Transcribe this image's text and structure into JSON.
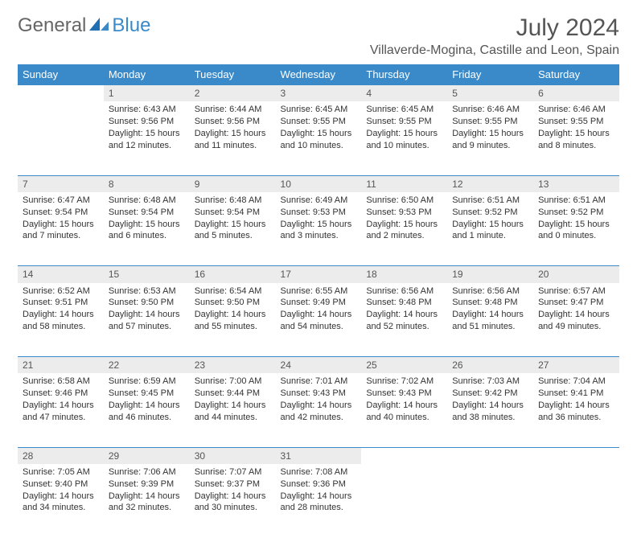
{
  "logo": {
    "general": "General",
    "blue": "Blue"
  },
  "title": "July 2024",
  "location": "Villaverde-Mogina, Castille and Leon, Spain",
  "colors": {
    "header_bg": "#3a8ac9",
    "header_text": "#ffffff",
    "daynum_bg": "#ececec",
    "border": "#3a8ac9",
    "text": "#333333",
    "title_text": "#555555"
  },
  "typography": {
    "title_fontsize": 30,
    "location_fontsize": 16,
    "dayhead_fontsize": 13,
    "cell_fontsize": 11
  },
  "day_headers": [
    "Sunday",
    "Monday",
    "Tuesday",
    "Wednesday",
    "Thursday",
    "Friday",
    "Saturday"
  ],
  "weeks": [
    {
      "nums": [
        "",
        "1",
        "2",
        "3",
        "4",
        "5",
        "6"
      ],
      "cells": [
        null,
        {
          "sunrise": "Sunrise: 6:43 AM",
          "sunset": "Sunset: 9:56 PM",
          "day1": "Daylight: 15 hours",
          "day2": "and 12 minutes."
        },
        {
          "sunrise": "Sunrise: 6:44 AM",
          "sunset": "Sunset: 9:56 PM",
          "day1": "Daylight: 15 hours",
          "day2": "and 11 minutes."
        },
        {
          "sunrise": "Sunrise: 6:45 AM",
          "sunset": "Sunset: 9:55 PM",
          "day1": "Daylight: 15 hours",
          "day2": "and 10 minutes."
        },
        {
          "sunrise": "Sunrise: 6:45 AM",
          "sunset": "Sunset: 9:55 PM",
          "day1": "Daylight: 15 hours",
          "day2": "and 10 minutes."
        },
        {
          "sunrise": "Sunrise: 6:46 AM",
          "sunset": "Sunset: 9:55 PM",
          "day1": "Daylight: 15 hours",
          "day2": "and 9 minutes."
        },
        {
          "sunrise": "Sunrise: 6:46 AM",
          "sunset": "Sunset: 9:55 PM",
          "day1": "Daylight: 15 hours",
          "day2": "and 8 minutes."
        }
      ]
    },
    {
      "nums": [
        "7",
        "8",
        "9",
        "10",
        "11",
        "12",
        "13"
      ],
      "cells": [
        {
          "sunrise": "Sunrise: 6:47 AM",
          "sunset": "Sunset: 9:54 PM",
          "day1": "Daylight: 15 hours",
          "day2": "and 7 minutes."
        },
        {
          "sunrise": "Sunrise: 6:48 AM",
          "sunset": "Sunset: 9:54 PM",
          "day1": "Daylight: 15 hours",
          "day2": "and 6 minutes."
        },
        {
          "sunrise": "Sunrise: 6:48 AM",
          "sunset": "Sunset: 9:54 PM",
          "day1": "Daylight: 15 hours",
          "day2": "and 5 minutes."
        },
        {
          "sunrise": "Sunrise: 6:49 AM",
          "sunset": "Sunset: 9:53 PM",
          "day1": "Daylight: 15 hours",
          "day2": "and 3 minutes."
        },
        {
          "sunrise": "Sunrise: 6:50 AM",
          "sunset": "Sunset: 9:53 PM",
          "day1": "Daylight: 15 hours",
          "day2": "and 2 minutes."
        },
        {
          "sunrise": "Sunrise: 6:51 AM",
          "sunset": "Sunset: 9:52 PM",
          "day1": "Daylight: 15 hours",
          "day2": "and 1 minute."
        },
        {
          "sunrise": "Sunrise: 6:51 AM",
          "sunset": "Sunset: 9:52 PM",
          "day1": "Daylight: 15 hours",
          "day2": "and 0 minutes."
        }
      ]
    },
    {
      "nums": [
        "14",
        "15",
        "16",
        "17",
        "18",
        "19",
        "20"
      ],
      "cells": [
        {
          "sunrise": "Sunrise: 6:52 AM",
          "sunset": "Sunset: 9:51 PM",
          "day1": "Daylight: 14 hours",
          "day2": "and 58 minutes."
        },
        {
          "sunrise": "Sunrise: 6:53 AM",
          "sunset": "Sunset: 9:50 PM",
          "day1": "Daylight: 14 hours",
          "day2": "and 57 minutes."
        },
        {
          "sunrise": "Sunrise: 6:54 AM",
          "sunset": "Sunset: 9:50 PM",
          "day1": "Daylight: 14 hours",
          "day2": "and 55 minutes."
        },
        {
          "sunrise": "Sunrise: 6:55 AM",
          "sunset": "Sunset: 9:49 PM",
          "day1": "Daylight: 14 hours",
          "day2": "and 54 minutes."
        },
        {
          "sunrise": "Sunrise: 6:56 AM",
          "sunset": "Sunset: 9:48 PM",
          "day1": "Daylight: 14 hours",
          "day2": "and 52 minutes."
        },
        {
          "sunrise": "Sunrise: 6:56 AM",
          "sunset": "Sunset: 9:48 PM",
          "day1": "Daylight: 14 hours",
          "day2": "and 51 minutes."
        },
        {
          "sunrise": "Sunrise: 6:57 AM",
          "sunset": "Sunset: 9:47 PM",
          "day1": "Daylight: 14 hours",
          "day2": "and 49 minutes."
        }
      ]
    },
    {
      "nums": [
        "21",
        "22",
        "23",
        "24",
        "25",
        "26",
        "27"
      ],
      "cells": [
        {
          "sunrise": "Sunrise: 6:58 AM",
          "sunset": "Sunset: 9:46 PM",
          "day1": "Daylight: 14 hours",
          "day2": "and 47 minutes."
        },
        {
          "sunrise": "Sunrise: 6:59 AM",
          "sunset": "Sunset: 9:45 PM",
          "day1": "Daylight: 14 hours",
          "day2": "and 46 minutes."
        },
        {
          "sunrise": "Sunrise: 7:00 AM",
          "sunset": "Sunset: 9:44 PM",
          "day1": "Daylight: 14 hours",
          "day2": "and 44 minutes."
        },
        {
          "sunrise": "Sunrise: 7:01 AM",
          "sunset": "Sunset: 9:43 PM",
          "day1": "Daylight: 14 hours",
          "day2": "and 42 minutes."
        },
        {
          "sunrise": "Sunrise: 7:02 AM",
          "sunset": "Sunset: 9:43 PM",
          "day1": "Daylight: 14 hours",
          "day2": "and 40 minutes."
        },
        {
          "sunrise": "Sunrise: 7:03 AM",
          "sunset": "Sunset: 9:42 PM",
          "day1": "Daylight: 14 hours",
          "day2": "and 38 minutes."
        },
        {
          "sunrise": "Sunrise: 7:04 AM",
          "sunset": "Sunset: 9:41 PM",
          "day1": "Daylight: 14 hours",
          "day2": "and 36 minutes."
        }
      ]
    },
    {
      "nums": [
        "28",
        "29",
        "30",
        "31",
        "",
        "",
        ""
      ],
      "cells": [
        {
          "sunrise": "Sunrise: 7:05 AM",
          "sunset": "Sunset: 9:40 PM",
          "day1": "Daylight: 14 hours",
          "day2": "and 34 minutes."
        },
        {
          "sunrise": "Sunrise: 7:06 AM",
          "sunset": "Sunset: 9:39 PM",
          "day1": "Daylight: 14 hours",
          "day2": "and 32 minutes."
        },
        {
          "sunrise": "Sunrise: 7:07 AM",
          "sunset": "Sunset: 9:37 PM",
          "day1": "Daylight: 14 hours",
          "day2": "and 30 minutes."
        },
        {
          "sunrise": "Sunrise: 7:08 AM",
          "sunset": "Sunset: 9:36 PM",
          "day1": "Daylight: 14 hours",
          "day2": "and 28 minutes."
        },
        null,
        null,
        null
      ]
    }
  ]
}
